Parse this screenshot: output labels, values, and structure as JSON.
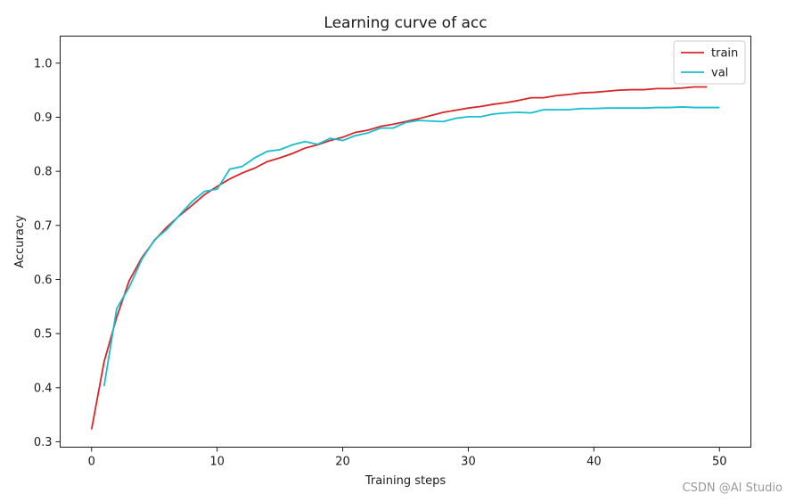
{
  "chart_data": {
    "type": "line",
    "title": "Learning curve of acc",
    "xlabel": "Training steps",
    "ylabel": "Accuracy",
    "xlim": [
      -2.5,
      52.5
    ],
    "ylim": [
      0.29,
      1.05
    ],
    "xticks": [
      0,
      10,
      20,
      30,
      40,
      50
    ],
    "yticks": [
      0.3,
      0.4,
      0.5,
      0.6,
      0.7,
      0.8,
      0.9,
      1.0
    ],
    "xtick_labels": [
      "0",
      "10",
      "20",
      "30",
      "40",
      "50"
    ],
    "ytick_labels": [
      "0.3",
      "0.4",
      "0.5",
      "0.6",
      "0.7",
      "0.8",
      "0.9",
      "1.0"
    ],
    "grid": false,
    "legend_position": "top-right",
    "series": [
      {
        "name": "train",
        "color": "#d62728",
        "x": [
          0,
          1,
          2,
          3,
          4,
          5,
          6,
          7,
          8,
          9,
          10,
          11,
          12,
          13,
          14,
          15,
          16,
          17,
          18,
          19,
          20,
          21,
          22,
          23,
          24,
          25,
          26,
          27,
          28,
          29,
          30,
          31,
          32,
          33,
          34,
          35,
          36,
          37,
          38,
          39,
          40,
          41,
          42,
          43,
          44,
          45,
          46,
          47,
          48,
          49
        ],
        "y": [
          0.323,
          0.448,
          0.53,
          0.598,
          0.64,
          0.672,
          0.697,
          0.718,
          0.737,
          0.757,
          0.772,
          0.786,
          0.797,
          0.806,
          0.818,
          0.825,
          0.833,
          0.843,
          0.849,
          0.857,
          0.863,
          0.872,
          0.876,
          0.883,
          0.887,
          0.892,
          0.897,
          0.903,
          0.909,
          0.913,
          0.917,
          0.92,
          0.924,
          0.927,
          0.931,
          0.936,
          0.936,
          0.94,
          0.942,
          0.945,
          0.946,
          0.948,
          0.95,
          0.951,
          0.951,
          0.953,
          0.953,
          0.954,
          0.956,
          0.956
        ]
      },
      {
        "name": "val",
        "color": "#17becf",
        "x": [
          1,
          2,
          3,
          4,
          5,
          6,
          7,
          8,
          9,
          10,
          11,
          12,
          13,
          14,
          15,
          16,
          17,
          18,
          19,
          20,
          21,
          22,
          23,
          24,
          25,
          26,
          27,
          28,
          29,
          30,
          31,
          32,
          33,
          34,
          35,
          36,
          37,
          38,
          39,
          40,
          41,
          42,
          43,
          44,
          45,
          46,
          47,
          48,
          49,
          50
        ],
        "y": [
          0.403,
          0.546,
          0.586,
          0.637,
          0.673,
          0.693,
          0.719,
          0.744,
          0.763,
          0.767,
          0.804,
          0.809,
          0.825,
          0.837,
          0.84,
          0.849,
          0.855,
          0.85,
          0.861,
          0.857,
          0.866,
          0.871,
          0.88,
          0.88,
          0.89,
          0.894,
          0.893,
          0.892,
          0.898,
          0.901,
          0.901,
          0.906,
          0.908,
          0.909,
          0.908,
          0.914,
          0.914,
          0.914,
          0.916,
          0.916,
          0.917,
          0.917,
          0.917,
          0.917,
          0.918,
          0.918,
          0.919,
          0.918,
          0.918,
          0.918
        ]
      }
    ]
  },
  "watermark": "CSDN @AI Studio"
}
